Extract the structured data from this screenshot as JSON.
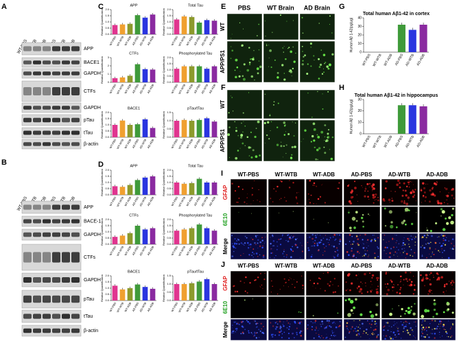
{
  "groups": [
    "WT-PBS",
    "WT-WTB",
    "WT-ADB",
    "AD-PBS",
    "AD-WTB",
    "AD-ADB"
  ],
  "colors": [
    "#e0358f",
    "#f0a030",
    "#8c9a2c",
    "#3f9a3a",
    "#2a35e0",
    "#8a2aa0"
  ],
  "panels": {
    "A": {
      "label": "A",
      "bands": [
        "APP",
        "BACE1",
        "GAPDH",
        "CTFs",
        "GAPDH",
        "pTau",
        "tTau",
        "β-actin"
      ]
    },
    "B": {
      "label": "B",
      "bands": [
        "APP",
        "BACE-1",
        "GAPDH",
        "CTFs",
        "GAPDH",
        "pTau",
        "tTau",
        "β-actin"
      ]
    },
    "C": {
      "label": "C",
      "charts": [
        {
          "title": "APP",
          "ylabel": "Relative Quantification",
          "values": [
            0.75,
            0.8,
            0.85,
            1.55,
            1.35,
            1.6
          ],
          "ylim": [
            0,
            2
          ],
          "yticks": [
            {
              "value": 0,
              "label": "0.0"
            },
            {
              "value": 0.5,
              "label": "0.5"
            },
            {
              "value": 1,
              "label": "1.0"
            },
            {
              "value": 1.5,
              "label": "1.5"
            },
            {
              "value": 2,
              "label": "2.0"
            }
          ]
        },
        {
          "title": "Total Tau",
          "ylabel": "Relative Quantification",
          "values": [
            1.2,
            1.45,
            1.4,
            0.95,
            1.15,
            1.1
          ],
          "ylim": [
            0,
            2
          ],
          "yticks": [
            {
              "value": 0,
              "label": "0.0"
            },
            {
              "value": 0.5,
              "label": "0.5"
            },
            {
              "value": 1,
              "label": "1.0"
            },
            {
              "value": 1.5,
              "label": "1.5"
            },
            {
              "value": 2,
              "label": "2.0"
            }
          ]
        },
        {
          "title": "CTFs",
          "ylabel": "Relative Quantification",
          "values": [
            0.5,
            0.6,
            0.8,
            2.2,
            1.6,
            1.55
          ],
          "ylim": [
            0,
            3
          ],
          "yticks": [
            0,
            1,
            2,
            3
          ]
        },
        {
          "title": "Phosphorylated Tau",
          "ylabel": "Relative Quantification",
          "values": [
            1.1,
            1.3,
            1.3,
            1.3,
            1.1,
            1.3
          ],
          "ylim": [
            0,
            2
          ],
          "yticks": [
            {
              "value": 0,
              "label": "0.0"
            },
            {
              "value": 0.5,
              "label": "0.5"
            },
            {
              "value": 1,
              "label": "1.0"
            },
            {
              "value": 1.5,
              "label": "1.5"
            },
            {
              "value": 2,
              "label": "2.0"
            }
          ]
        },
        {
          "title": "BACE1",
          "ylabel": "Relative Quantification",
          "values": [
            1.0,
            1.35,
            1.0,
            1.05,
            1.45,
            0.75
          ],
          "ylim": [
            0,
            2
          ],
          "yticks": [
            {
              "value": 0,
              "label": "0.0"
            },
            {
              "value": 0.5,
              "label": "0.5"
            },
            {
              "value": 1,
              "label": "1.0"
            },
            {
              "value": 1.5,
              "label": "1.5"
            },
            {
              "value": 2,
              "label": "2.0"
            }
          ]
        },
        {
          "title": "pTau/tTau",
          "ylabel": "Relative Quantification",
          "values": [
            1.0,
            1.05,
            1.0,
            1.05,
            1.15,
            0.95
          ],
          "ylim": [
            0,
            1.5
          ],
          "yticks": [
            {
              "value": 0,
              "label": "0.0"
            },
            {
              "value": 0.5,
              "label": "0.5"
            },
            {
              "value": 1,
              "label": "1.0"
            },
            {
              "value": 1.5,
              "label": "1.5"
            }
          ]
        }
      ]
    },
    "D": {
      "label": "D",
      "charts": [
        {
          "title": "APP",
          "ylabel": "Relative Quantification",
          "values": [
            0.7,
            0.65,
            0.8,
            1.2,
            1.4,
            1.5
          ],
          "ylim": [
            0,
            2
          ],
          "yticks": [
            {
              "value": 0,
              "label": "0.0"
            },
            {
              "value": 0.5,
              "label": "0.5"
            },
            {
              "value": 1,
              "label": "1.0"
            },
            {
              "value": 1.5,
              "label": "1.5"
            },
            {
              "value": 2,
              "label": "2.0"
            }
          ]
        },
        {
          "title": "Total Tau",
          "ylabel": "Relative Quantification",
          "values": [
            1.0,
            0.9,
            0.95,
            1.3,
            1.0,
            1.0
          ],
          "ylim": [
            0,
            2
          ],
          "yticks": [
            {
              "value": 0,
              "label": "0.0"
            },
            {
              "value": 0.5,
              "label": "0.5"
            },
            {
              "value": 1,
              "label": "1.0"
            },
            {
              "value": 1.5,
              "label": "1.5"
            },
            {
              "value": 2,
              "label": "2.0"
            }
          ]
        },
        {
          "title": "CTFs",
          "ylabel": "Relative Quantification",
          "values": [
            0.6,
            0.7,
            0.9,
            1.5,
            1.2,
            1.3
          ],
          "ylim": [
            0,
            2
          ],
          "yticks": [
            {
              "value": 0,
              "label": "0.0"
            },
            {
              "value": 0.5,
              "label": "0.5"
            },
            {
              "value": 1,
              "label": "1.0"
            },
            {
              "value": 1.5,
              "label": "1.5"
            },
            {
              "value": 2,
              "label": "2.0"
            }
          ]
        },
        {
          "title": "Phosphorylated Tau",
          "ylabel": "Relative Quantification",
          "values": [
            1.1,
            1.2,
            1.3,
            1.6,
            1.3,
            1.1
          ],
          "ylim": [
            0,
            2
          ],
          "yticks": [
            {
              "value": 0,
              "label": "0.0"
            },
            {
              "value": 0.5,
              "label": "0.5"
            },
            {
              "value": 1,
              "label": "1.0"
            },
            {
              "value": 1.5,
              "label": "1.5"
            },
            {
              "value": 2,
              "label": "2.0"
            }
          ]
        },
        {
          "title": "BACE1",
          "ylabel": "Relative Quantification",
          "values": [
            1.2,
            0.9,
            1.0,
            1.3,
            1.1,
            0.95
          ],
          "ylim": [
            0,
            2
          ],
          "yticks": [
            {
              "value": 0,
              "label": "0.0"
            },
            {
              "value": 0.5,
              "label": "0.5"
            },
            {
              "value": 1,
              "label": "1.0"
            },
            {
              "value": 1.5,
              "label": "1.5"
            },
            {
              "value": 2,
              "label": "2.0"
            }
          ]
        },
        {
          "title": "pTau/tTau",
          "ylabel": "Relative Quantification",
          "values": [
            1.0,
            1.0,
            1.05,
            1.15,
            1.3,
            1.0
          ],
          "ylim": [
            0,
            1.5
          ],
          "yticks": [
            {
              "value": 0,
              "label": "0.0"
            },
            {
              "value": 0.5,
              "label": "0.5"
            },
            {
              "value": 1,
              "label": "1.0"
            },
            {
              "value": 1.5,
              "label": "1.5"
            }
          ]
        }
      ]
    },
    "E": {
      "label": "E",
      "columns": [
        "PBS",
        "WT Brain",
        "AD Brain"
      ],
      "rows": [
        "WT",
        "APP/PS1"
      ]
    },
    "F": {
      "label": "F",
      "rows": [
        "WT",
        "APP/PS1"
      ]
    },
    "G": {
      "label": "G",
      "chart": {
        "title": "Total human Aβ1-42 in cortex",
        "ylabel": "Human Aβ 1-42(pg/μg)",
        "values": [
          0,
          0,
          0,
          32,
          26,
          32
        ],
        "ylim": [
          0,
          40
        ],
        "yticks": [
          0,
          10,
          20,
          30,
          40
        ]
      }
    },
    "H": {
      "label": "H",
      "chart": {
        "title": "Total human Aβ1-42 in hippocampus",
        "ylabel": "Human Aβ 1-42(pg/μg)",
        "values": [
          0,
          0,
          0,
          25,
          25,
          24
        ],
        "ylim": [
          0,
          30
        ],
        "yticks": [
          0,
          10,
          20,
          30
        ]
      }
    },
    "I": {
      "label": "I",
      "rows": [
        "GFAP",
        "6E10",
        "Merge"
      ]
    },
    "J": {
      "label": "J",
      "rows": [
        "GFAP",
        "6E10",
        "Merge"
      ]
    }
  }
}
